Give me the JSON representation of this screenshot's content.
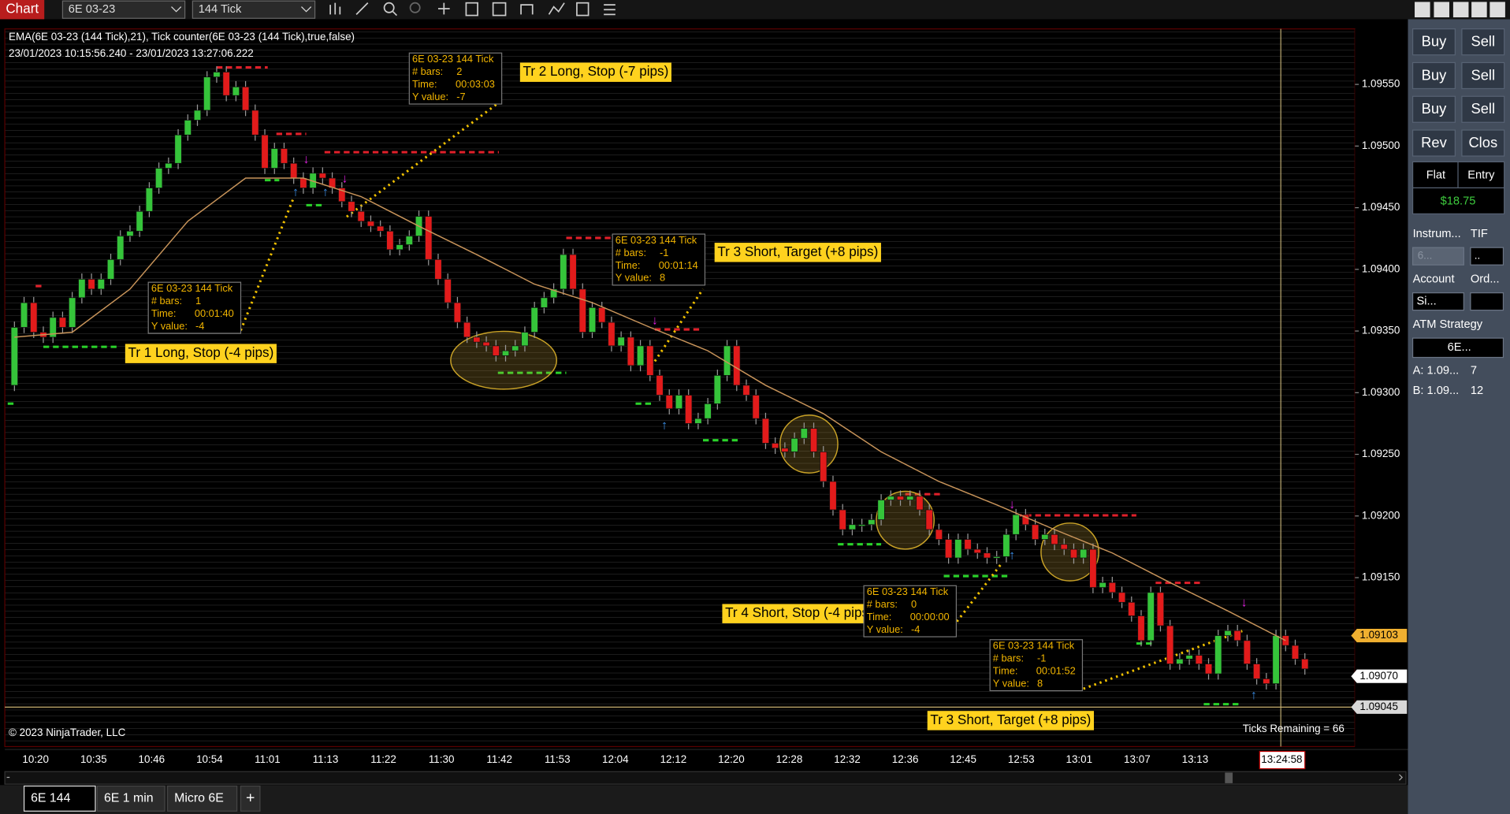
{
  "toolbar": {
    "title": "Chart",
    "instrument": "6E 03-23",
    "interval": "144 Tick"
  },
  "chart": {
    "indicator_label": "EMA(6E 03-23 (144 Tick),21), Tick counter(6E 03-23 (144 Tick),true,false)",
    "date_range": "23/01/2023 10:15:56.240 - 23/01/2023 13:27:06.222",
    "copyright": "© 2023 NinjaTrader, LLC",
    "ticks_remaining": "Ticks Remaining = 66",
    "ylim": [
      1.09013,
      1.09595
    ],
    "price_ticks": [
      {
        "value": 1.0955,
        "label": "1.09550"
      },
      {
        "value": 1.095,
        "label": "1.09500"
      },
      {
        "value": 1.0945,
        "label": "1.09450"
      },
      {
        "value": 1.094,
        "label": "1.09400"
      },
      {
        "value": 1.0935,
        "label": "1.09350"
      },
      {
        "value": 1.093,
        "label": "1.09300"
      },
      {
        "value": 1.0925,
        "label": "1.09250"
      },
      {
        "value": 1.092,
        "label": "1.09200"
      },
      {
        "value": 1.0915,
        "label": "1.09150"
      }
    ],
    "price_markers": [
      {
        "value": 1.09103,
        "label": "1.09103"
      },
      {
        "value": 1.0907,
        "label": "1.09070"
      },
      {
        "value": 1.09045,
        "label": "1.09045"
      }
    ],
    "time_labels": [
      "10:20",
      "10:35",
      "10:46",
      "10:54",
      "11:01",
      "11:13",
      "11:22",
      "11:30",
      "11:42",
      "11:53",
      "12:04",
      "12:12",
      "12:20",
      "12:28",
      "12:32",
      "12:36",
      "12:45",
      "12:53",
      "13:01",
      "13:07",
      "13:13"
    ],
    "time_cursor": "13:24:58",
    "candle_first_open": 1.09306,
    "candle_closes": [
      1.09353,
      1.09373,
      1.09349,
      1.09345,
      1.09361,
      1.09353,
      1.09377,
      1.09392,
      1.09384,
      1.09392,
      1.09408,
      1.09427,
      1.09431,
      1.09447,
      1.09466,
      1.09482,
      1.09486,
      1.09509,
      1.09521,
      1.09529,
      1.09556,
      1.0956,
      1.09541,
      1.09548,
      1.09529,
      1.09509,
      1.09482,
      1.09498,
      1.09486,
      1.09474,
      1.09466,
      1.09478,
      1.09474,
      1.09466,
      1.09455,
      1.09447,
      1.09439,
      1.09435,
      1.09431,
      1.09416,
      1.0942,
      1.09427,
      1.09443,
      1.09408,
      1.09392,
      1.09373,
      1.09357,
      1.09345,
      1.09341,
      1.09338,
      1.0933,
      1.09334,
      1.09338,
      1.09349,
      1.09369,
      1.09377,
      1.09384,
      1.09412,
      1.09384,
      1.09349,
      1.09369,
      1.09357,
      1.09338,
      1.09345,
      1.09322,
      1.09338,
      1.09314,
      1.09298,
      1.09287,
      1.09298,
      1.09275,
      1.09279,
      1.09291,
      1.09314,
      1.09338,
      1.09306,
      1.09298,
      1.09279,
      1.09259,
      1.09255,
      1.09252,
      1.09263,
      1.09271,
      1.09252,
      1.09228,
      1.09205,
      1.09189,
      1.09193,
      1.09193,
      1.09197,
      1.09213,
      1.09216,
      1.09213,
      1.09216,
      1.09205,
      1.09189,
      1.09181,
      1.09166,
      1.09181,
      1.09173,
      1.0917,
      1.09166,
      1.09167,
      1.09185,
      1.09201,
      1.09193,
      1.09181,
      1.09185,
      1.09177,
      1.09173,
      1.09166,
      1.09173,
      1.09142,
      1.09146,
      1.09138,
      1.0913,
      1.09119,
      1.09099,
      1.09138,
      1.09111,
      1.0908,
      1.09084,
      1.09087,
      1.0908,
      1.09072,
      1.09103,
      1.09107,
      1.09099,
      1.0908,
      1.09068,
      1.09064,
      1.09103,
      1.09095,
      1.09084,
      1.09076
    ],
    "ema": [
      1.09345,
      1.09349,
      1.09384,
      1.09439,
      1.09474,
      1.09474,
      1.09459,
      1.09435,
      1.09412,
      1.09388,
      1.09373,
      1.09353,
      1.09334,
      1.09306,
      1.09283,
      1.09252,
      1.09228,
      1.09209,
      1.09189,
      1.0917,
      1.09146,
      1.09123,
      1.09099
    ],
    "annotations": [
      "Tr 1 Long, Stop (-4 pips)",
      "Tr 2 Long, Stop (-7 pips)",
      "Tr 3 Short, Target (+8 pips)",
      "Tr 4 Short, Stop (-4 pips)",
      "Tr 3 Short, Target (+8 pips)"
    ],
    "info_box_labels": {
      "bars": "# bars:",
      "time": "Time:",
      "y_value": "Y value:"
    },
    "info_boxes": [
      {
        "title": "6E 03-23 144 Tick",
        "bars": "2",
        "time": "00:03:03",
        "y_value": "-7"
      },
      {
        "title": "6E 03-23 144 Tick",
        "bars": "1",
        "time": "00:01:40",
        "y_value": "-4"
      },
      {
        "title": "6E 03-23 144 Tick",
        "bars": "-1",
        "time": "00:01:14",
        "y_value": "8"
      },
      {
        "title": "6E 03-23 144 Tick",
        "bars": "0",
        "time": "00:00:00",
        "y_value": "-4"
      },
      {
        "title": "6E 03-23 144 Tick",
        "bars": "-1",
        "time": "00:01:52",
        "y_value": "8"
      }
    ]
  },
  "tabs": [
    "6E 144",
    "6E 1 min",
    "Micro 6E",
    "+"
  ],
  "panel": {
    "buttons": [
      "Buy",
      "Sell",
      "Buy",
      "Sell",
      "Buy",
      "Sell",
      "Rev",
      "Clos"
    ],
    "position": "Flat",
    "entry": "Entry",
    "pnl": "$18.75",
    "instrument_label": "Instrum...",
    "tif_label": "TIF",
    "instrument_value": "6...",
    "tif_value": "..",
    "account_label": "Account",
    "order_label": "Ord...",
    "account_value": "Si...",
    "atm_label": "ATM Strategy",
    "atm_value": "6E...",
    "ask_label": "A:  1.09...",
    "ask_size": "7",
    "bid_label": "B:  1.09...",
    "bid_size": "12"
  }
}
